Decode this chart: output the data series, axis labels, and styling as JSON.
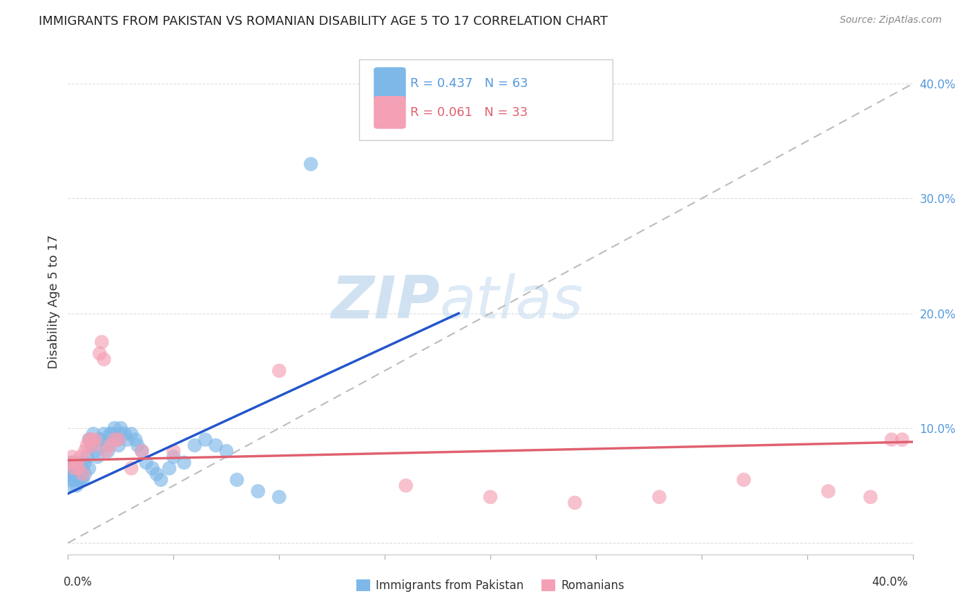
{
  "title": "IMMIGRANTS FROM PAKISTAN VS ROMANIAN DISABILITY AGE 5 TO 17 CORRELATION CHART",
  "source": "Source: ZipAtlas.com",
  "ylabel": "Disability Age 5 to 17",
  "xlim": [
    0.0,
    0.4
  ],
  "ylim": [
    -0.01,
    0.43
  ],
  "pakistan_R": 0.437,
  "pakistan_N": 63,
  "romanian_R": 0.061,
  "romanian_N": 33,
  "pakistan_color": "#7EB8E8",
  "romanian_color": "#F4A0B5",
  "pakistan_line_color": "#2255CC",
  "romanian_line_color": "#E06070",
  "diagonal_color": "#BBBBBB",
  "background_color": "#FFFFFF",
  "grid_color": "#DDDDDD",
  "watermark_zip": "ZIP",
  "watermark_atlas": "atlas",
  "pakistan_scatter_x": [
    0.001,
    0.001,
    0.001,
    0.002,
    0.002,
    0.002,
    0.002,
    0.003,
    0.003,
    0.003,
    0.003,
    0.004,
    0.004,
    0.004,
    0.005,
    0.005,
    0.005,
    0.006,
    0.006,
    0.007,
    0.007,
    0.008,
    0.008,
    0.009,
    0.01,
    0.01,
    0.011,
    0.012,
    0.013,
    0.014,
    0.015,
    0.016,
    0.017,
    0.018,
    0.019,
    0.02,
    0.021,
    0.022,
    0.023,
    0.024,
    0.025,
    0.025,
    0.027,
    0.028,
    0.03,
    0.032,
    0.033,
    0.035,
    0.037,
    0.04,
    0.042,
    0.044,
    0.048,
    0.05,
    0.055,
    0.06,
    0.065,
    0.07,
    0.075,
    0.08,
    0.09,
    0.1,
    0.115
  ],
  "pakistan_scatter_y": [
    0.055,
    0.06,
    0.065,
    0.05,
    0.06,
    0.065,
    0.07,
    0.055,
    0.06,
    0.065,
    0.07,
    0.05,
    0.06,
    0.065,
    0.055,
    0.06,
    0.065,
    0.055,
    0.06,
    0.055,
    0.065,
    0.06,
    0.07,
    0.075,
    0.065,
    0.09,
    0.085,
    0.095,
    0.08,
    0.075,
    0.09,
    0.09,
    0.095,
    0.085,
    0.08,
    0.095,
    0.095,
    0.1,
    0.09,
    0.085,
    0.1,
    0.095,
    0.095,
    0.09,
    0.095,
    0.09,
    0.085,
    0.08,
    0.07,
    0.065,
    0.06,
    0.055,
    0.065,
    0.075,
    0.07,
    0.085,
    0.09,
    0.085,
    0.08,
    0.055,
    0.045,
    0.04,
    0.33
  ],
  "romanian_scatter_x": [
    0.001,
    0.002,
    0.003,
    0.004,
    0.005,
    0.006,
    0.007,
    0.008,
    0.009,
    0.01,
    0.011,
    0.012,
    0.013,
    0.015,
    0.016,
    0.017,
    0.018,
    0.02,
    0.022,
    0.024,
    0.03,
    0.035,
    0.05,
    0.1,
    0.16,
    0.2,
    0.24,
    0.28,
    0.32,
    0.36,
    0.38,
    0.39,
    0.395
  ],
  "romanian_scatter_y": [
    0.07,
    0.075,
    0.065,
    0.07,
    0.065,
    0.075,
    0.06,
    0.08,
    0.085,
    0.09,
    0.09,
    0.085,
    0.09,
    0.165,
    0.175,
    0.16,
    0.08,
    0.085,
    0.09,
    0.09,
    0.065,
    0.08,
    0.08,
    0.15,
    0.05,
    0.04,
    0.035,
    0.04,
    0.055,
    0.045,
    0.04,
    0.09,
    0.09
  ],
  "pak_line_x0": 0.0,
  "pak_line_x1": 0.185,
  "pak_line_y0": 0.043,
  "pak_line_y1": 0.2,
  "rom_line_x0": 0.0,
  "rom_line_x1": 0.4,
  "rom_line_y0": 0.072,
  "rom_line_y1": 0.088
}
